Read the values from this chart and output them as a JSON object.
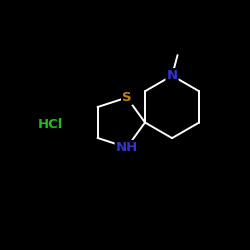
{
  "background_color": "#000000",
  "bond_color": "#ffffff",
  "S_color": "#c8820a",
  "N_color": "#3333cc",
  "NH_color": "#3333cc",
  "HCl_color": "#22bb22",
  "atom_S_label": "S",
  "atom_N_label": "N",
  "atom_NH_label": "NH",
  "atom_HCl_label": "HCl",
  "figsize": [
    2.5,
    2.5
  ],
  "dpi": 100,
  "font_size_atoms": 9.5,
  "font_size_HCl": 9.5,
  "lw": 1.4
}
